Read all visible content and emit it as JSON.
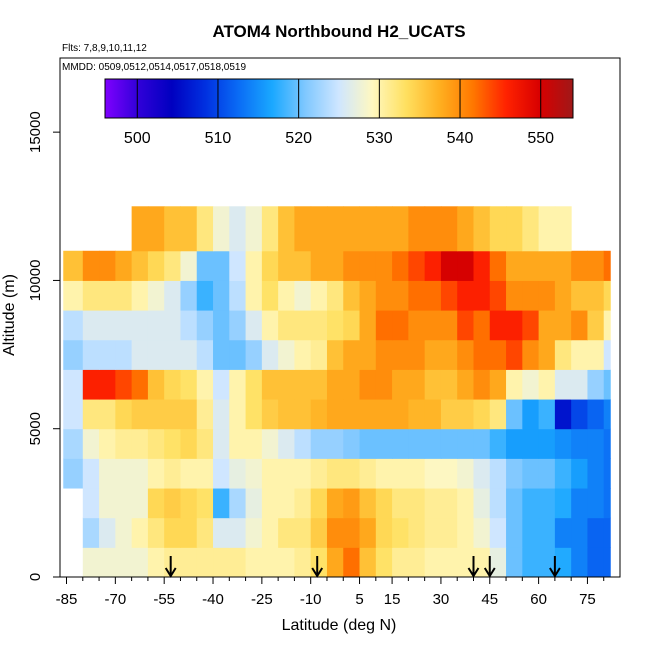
{
  "chart_data": {
    "type": "heatmap",
    "title": "ATOM4 Northbound H2_UCATS",
    "subtitle_flights": "Flts: 7,8,9,10,11,12",
    "subtitle_dates": "MMDD: 0509,0512,0514,0517,0518,0519",
    "xlabel": "Latitude (deg N)",
    "ylabel": "Altitude (m)",
    "xlim": [
      -87,
      85
    ],
    "ylim": [
      0,
      17500
    ],
    "x_ticks": [
      -85,
      -70,
      -55,
      -40,
      -25,
      -10,
      5,
      15,
      30,
      45,
      60,
      75
    ],
    "x_minor_ticks": [
      -80,
      -75,
      -65,
      -60,
      -50,
      -45,
      -35,
      -30,
      -20,
      -15,
      -5,
      0,
      10,
      20,
      25,
      35,
      40,
      50,
      55,
      65,
      70,
      80
    ],
    "y_ticks": [
      0,
      5000,
      10000,
      15000
    ],
    "colorbar": {
      "ticks": [
        500,
        510,
        520,
        530,
        540,
        550
      ],
      "range": [
        496,
        554
      ],
      "colors": [
        "#7f00ff",
        "#3000d8",
        "#0000c0",
        "#0030e0",
        "#0a6cf5",
        "#1aa8ff",
        "#80c8ff",
        "#cfe6ff",
        "#fff8c0",
        "#ffe060",
        "#ffb020",
        "#ff7800",
        "#ff2200",
        "#d80000",
        "#a01818"
      ]
    },
    "arrows_latitude": [
      -53,
      -8,
      40,
      45,
      65
    ],
    "grid_latitude_edges": [
      -86,
      -80,
      -75,
      -70,
      -65,
      -60,
      -55,
      -50,
      -45,
      -40,
      -35,
      -30,
      -25,
      -20,
      -15,
      -10,
      -5,
      0,
      5,
      10,
      15,
      20,
      25,
      30,
      35,
      40,
      45,
      50,
      55,
      60,
      65,
      70,
      75,
      80,
      82
    ],
    "grid_altitude_edges": [
      0,
      1000,
      2000,
      3000,
      4000,
      5000,
      6000,
      7000,
      8000,
      9000,
      10000,
      11000,
      12500
    ],
    "values": [
      [
        null,
        528,
        528,
        528,
        528,
        530,
        531,
        531,
        531,
        531,
        531,
        530,
        530,
        530,
        531,
        533,
        538,
        542,
        536,
        533,
        531,
        531,
        530,
        530,
        530,
        530,
        527,
        520,
        518,
        518,
        517,
        514,
        512,
        512
      ],
      [
        null,
        523,
        526,
        528,
        530,
        532,
        534,
        534,
        532,
        526,
        526,
        528,
        530,
        532,
        532,
        535,
        540,
        540,
        538,
        534,
        533,
        532,
        531,
        531,
        530,
        528,
        525,
        520,
        518,
        518,
        514,
        514,
        512,
        512
      ],
      [
        null,
        525,
        528,
        528,
        528,
        534,
        535,
        534,
        533,
        518,
        523,
        527,
        530,
        530,
        531,
        534,
        538,
        539,
        536,
        534,
        532,
        532,
        531,
        531,
        530,
        527,
        524,
        520,
        518,
        518,
        517,
        514,
        514,
        513
      ],
      [
        522,
        525,
        528,
        528,
        528,
        530,
        531,
        530,
        530,
        525,
        527,
        528,
        530,
        530,
        530,
        531,
        532,
        532,
        531,
        530,
        530,
        530,
        529,
        529,
        528,
        526,
        524,
        521,
        520,
        520,
        518,
        516,
        514,
        513
      ],
      [
        523,
        528,
        530,
        531,
        531,
        532,
        533,
        534,
        532,
        526,
        530,
        530,
        528,
        526,
        524,
        522,
        522,
        521,
        520,
        520,
        520,
        520,
        520,
        520,
        520,
        520,
        518,
        516,
        516,
        516,
        515,
        514,
        514,
        513
      ],
      [
        525,
        532,
        532,
        534,
        535,
        535,
        535,
        535,
        531,
        526,
        530,
        533,
        535,
        536,
        536,
        537,
        538,
        538,
        538,
        538,
        538,
        537,
        537,
        535,
        535,
        534,
        532,
        520,
        516,
        518,
        506,
        510,
        512,
        514
      ],
      [
        525,
        546,
        546,
        544,
        542,
        536,
        534,
        533,
        530,
        525,
        530,
        533,
        536,
        536,
        536,
        536,
        538,
        538,
        540,
        540,
        538,
        538,
        536,
        536,
        538,
        540,
        538,
        530,
        528,
        530,
        526,
        526,
        522,
        520
      ],
      [
        522,
        524,
        524,
        524,
        526,
        526,
        526,
        526,
        524,
        520,
        520,
        522,
        526,
        528,
        530,
        531,
        536,
        538,
        538,
        540,
        540,
        540,
        538,
        538,
        540,
        542,
        542,
        544,
        540,
        538,
        532,
        530,
        530,
        525
      ],
      [
        524,
        526,
        526,
        526,
        526,
        526,
        526,
        524,
        522,
        520,
        522,
        526,
        530,
        532,
        532,
        532,
        533,
        534,
        538,
        542,
        542,
        540,
        540,
        540,
        544,
        542,
        546,
        546,
        544,
        538,
        538,
        540,
        535,
        530
      ],
      [
        530,
        532,
        532,
        532,
        530,
        528,
        526,
        522,
        518,
        520,
        524,
        530,
        533,
        530,
        528,
        530,
        532,
        536,
        538,
        540,
        540,
        542,
        542,
        544,
        546,
        546,
        544,
        540,
        540,
        540,
        538,
        536,
        536,
        534
      ],
      [
        536,
        540,
        540,
        538,
        536,
        534,
        532,
        528,
        520,
        520,
        525,
        530,
        534,
        536,
        536,
        538,
        538,
        540,
        540,
        540,
        542,
        544,
        546,
        550,
        550,
        546,
        542,
        538,
        538,
        538,
        538,
        540,
        540,
        542
      ],
      [
        null,
        null,
        null,
        null,
        538,
        538,
        536,
        536,
        532,
        528,
        526,
        528,
        532,
        536,
        538,
        538,
        538,
        538,
        538,
        538,
        538,
        540,
        540,
        540,
        538,
        536,
        534,
        534,
        532,
        530,
        530,
        null,
        null,
        null
      ]
    ]
  }
}
